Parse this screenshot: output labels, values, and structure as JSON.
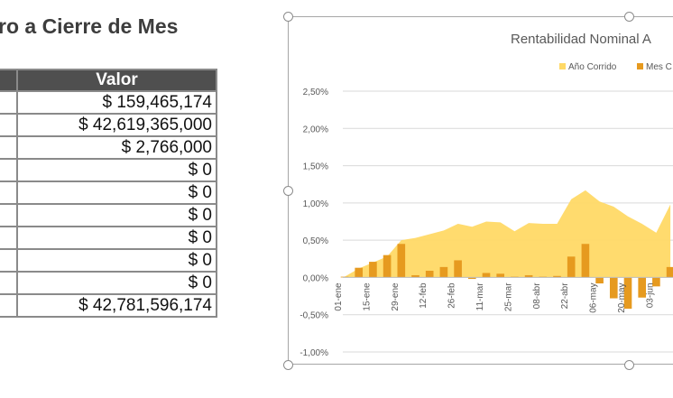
{
  "sheet": {
    "title": "ro a Cierre de Mes",
    "table": {
      "header": "Valor",
      "rows": [
        "$ 159,465,174",
        "$ 42,619,365,000",
        "$ 2,766,000",
        "$ 0",
        "$ 0",
        "$ 0",
        "$ 0",
        "$ 0",
        "$ 0",
        "$ 42,781,596,174"
      ]
    }
  },
  "chart_data": {
    "type": "bar",
    "title": "Rentabilidad Nominal A",
    "legend_position": "top-right",
    "y_ticks": [
      "2,50%",
      "2,00%",
      "1,50%",
      "1,00%",
      "0,50%",
      "0,00%",
      "-0,50%",
      "-1,00%"
    ],
    "ylim": [
      -0.01,
      0.025
    ],
    "x_tick_labels": [
      "01-ene",
      "15-ene",
      "29-ene",
      "12-feb",
      "26-feb",
      "11-mar",
      "25-mar",
      "08-abr",
      "22-abr",
      "06-may",
      "20-may",
      "03-jun"
    ],
    "grid": true,
    "series": [
      {
        "name": "Año Corrido",
        "type": "area",
        "color": "#ffd966",
        "x": [
          "01-ene",
          "08-ene",
          "15-ene",
          "22-ene",
          "29-ene",
          "05-feb",
          "12-feb",
          "19-feb",
          "26-feb",
          "04-mar",
          "11-mar",
          "18-mar",
          "25-mar",
          "01-abr",
          "08-abr",
          "15-abr",
          "22-abr",
          "29-abr",
          "06-may",
          "13-may",
          "20-may",
          "27-may",
          "03-jun",
          "10-jun"
        ],
        "values": [
          0.0001,
          0.0012,
          0.002,
          0.0028,
          0.005,
          0.0053,
          0.0058,
          0.0063,
          0.0072,
          0.0068,
          0.0075,
          0.0074,
          0.0062,
          0.0073,
          0.0072,
          0.0072,
          0.0105,
          0.0117,
          0.0102,
          0.0095,
          0.0082,
          0.0072,
          0.006,
          0.0098
        ]
      },
      {
        "name": "Mes C",
        "type": "bar",
        "color": "#e69a1f",
        "x": [
          "01-ene",
          "08-ene",
          "15-ene",
          "22-ene",
          "29-ene",
          "05-feb",
          "12-feb",
          "19-feb",
          "26-feb",
          "04-mar",
          "11-mar",
          "18-mar",
          "25-mar",
          "01-abr",
          "08-abr",
          "15-abr",
          "22-abr",
          "29-abr",
          "06-may",
          "13-may",
          "20-may",
          "27-may",
          "03-jun",
          "10-jun"
        ],
        "values": [
          0.0001,
          0.0013,
          0.0021,
          0.003,
          0.0045,
          0.0003,
          0.0009,
          0.0014,
          0.0023,
          -0.0002,
          0.0006,
          0.0005,
          0.0001,
          0.0003,
          0.0001,
          0.0002,
          0.0028,
          0.0045,
          -0.0008,
          -0.0028,
          -0.0042,
          -0.0027,
          -0.0012,
          0.0014
        ]
      }
    ]
  }
}
